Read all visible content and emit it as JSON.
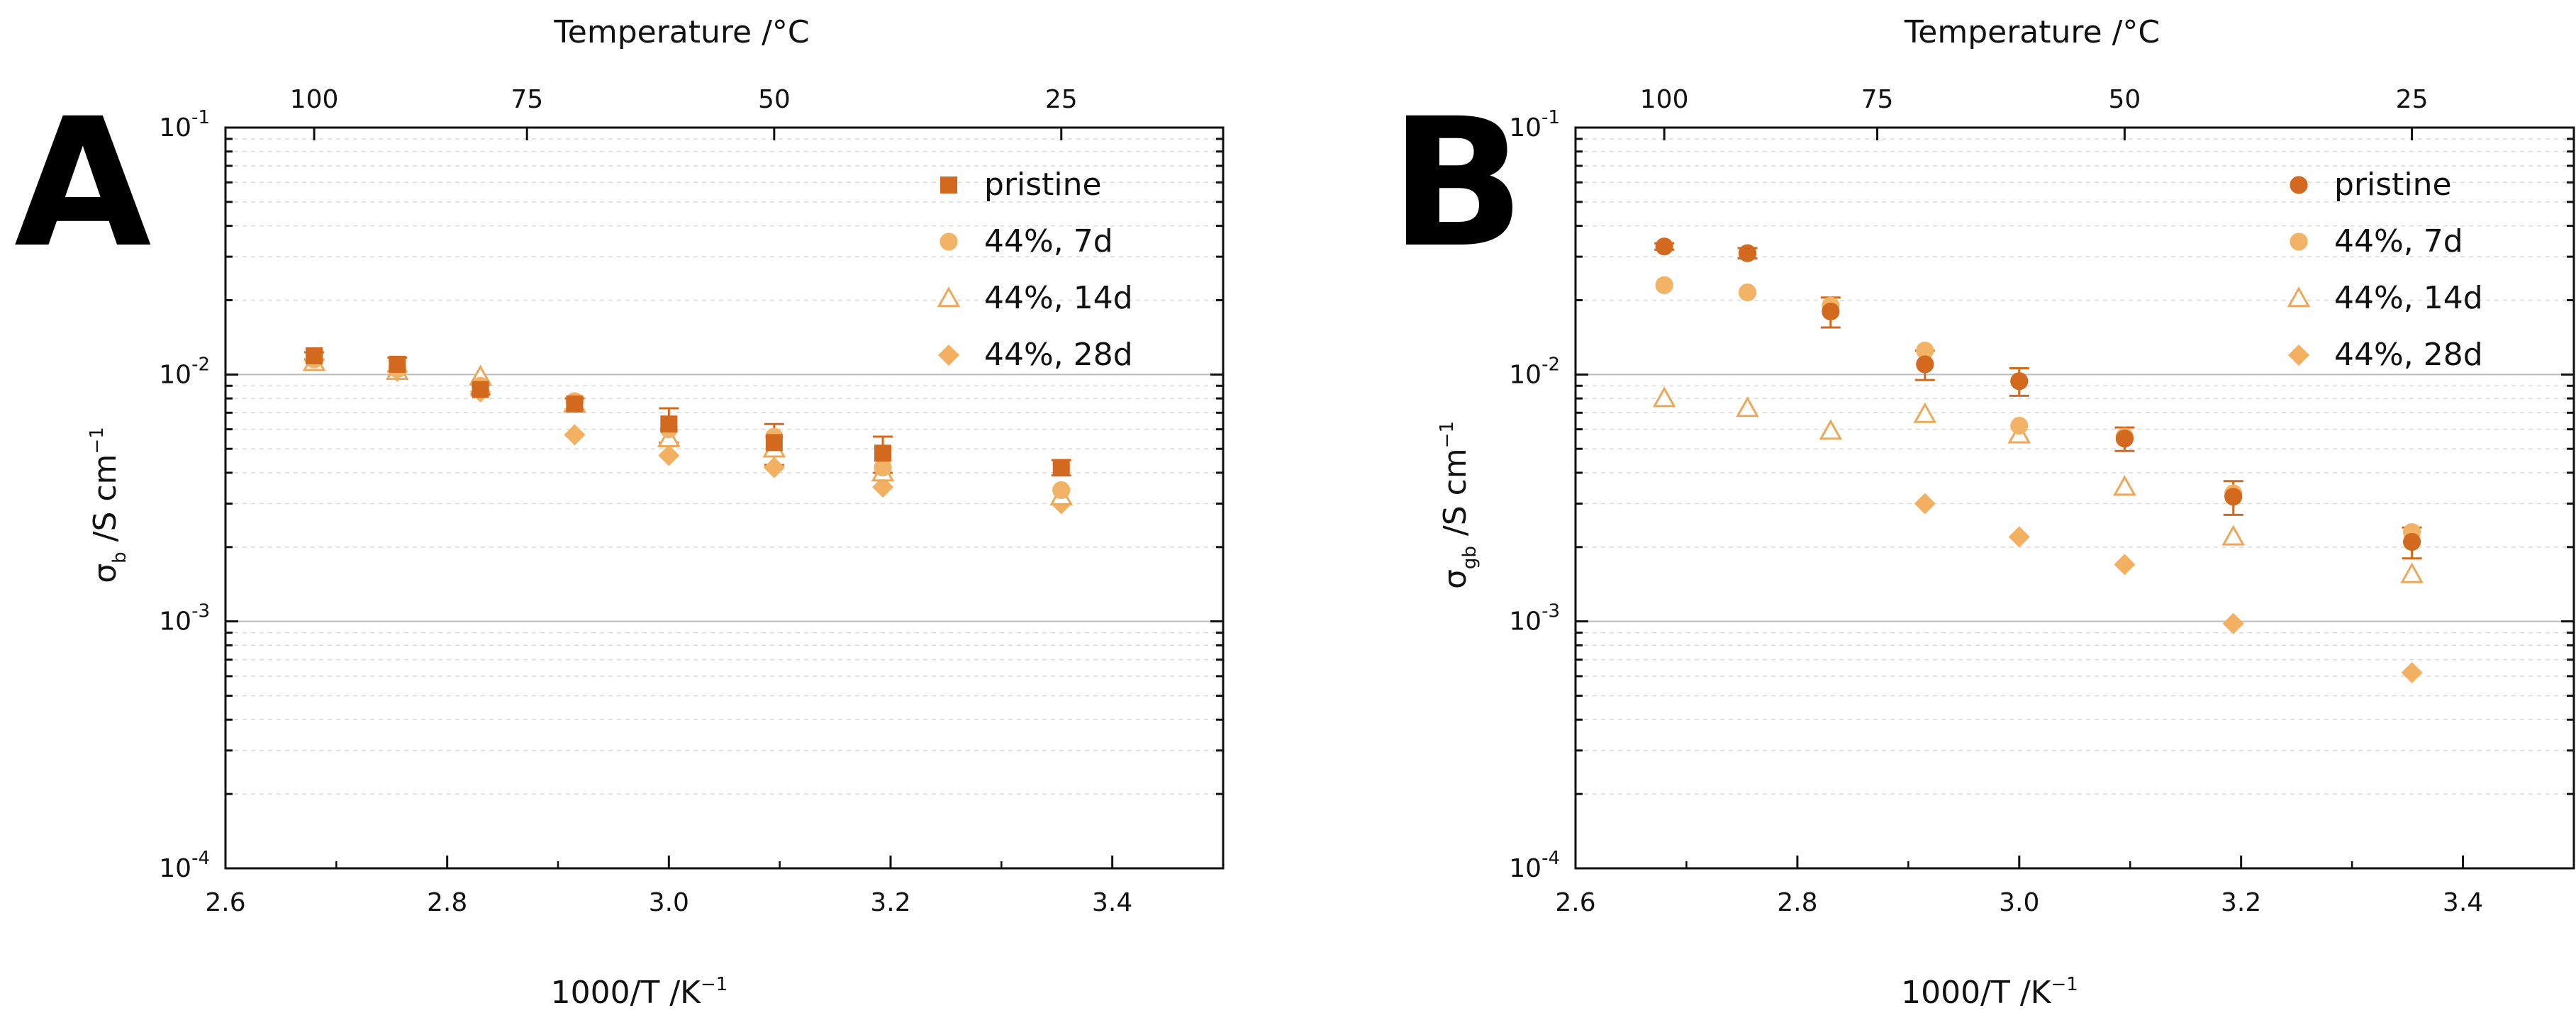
{
  "figure": {
    "panels": [
      "A",
      "B"
    ]
  },
  "colors": {
    "pristine": "#D2691E",
    "d7": "#F2B366",
    "d14": "#EBA85A",
    "d28": "#F2B060",
    "grid_major": "#BBBBBB",
    "grid_minor": "#D9D9D9"
  },
  "chart_data": [
    {
      "type": "scatter",
      "panel": "A",
      "top_axis_title": "Temperature /°C",
      "top_ticks": [
        {
          "label": "100",
          "x": 2.68
        },
        {
          "label": "75",
          "x": 2.872
        },
        {
          "label": "50",
          "x": 3.095
        },
        {
          "label": "25",
          "x": 3.354
        }
      ],
      "xlabel_text": "1000/T /K",
      "xlabel_sup": "−1",
      "ylabel_sym": "σ",
      "ylabel_sub": "b",
      "ylabel_rest": " /S cm",
      "ylabel_sup": "−1",
      "xlim": [
        2.6,
        3.5
      ],
      "xticks": [
        "2.6",
        "2.8",
        "3.0",
        "3.2",
        "3.4"
      ],
      "yscale": "log",
      "ylim": [
        0.0001,
        0.1
      ],
      "ytick_base": "10",
      "ytick_exps": [
        "-4",
        "-3",
        "-2",
        "-1"
      ],
      "legend": {
        "position": "top-right",
        "entries": [
          "pristine",
          "44%, 7d",
          "44%, 14d",
          "44%, 28d"
        ]
      },
      "series": [
        {
          "name": "pristine",
          "marker": "square",
          "x": [
            2.68,
            2.755,
            2.83,
            2.915,
            3.0,
            3.095,
            3.193,
            3.354
          ],
          "y": [
            0.0119,
            0.011,
            0.0087,
            0.0076,
            0.0063,
            0.0053,
            0.0048,
            0.0042
          ],
          "err": [
            0.0004,
            0.0007,
            0.0004,
            0.0004,
            0.001,
            0.001,
            0.0008,
            0.0003
          ]
        },
        {
          "name": "44%, 7d",
          "marker": "circle",
          "x": [
            2.68,
            2.755,
            2.83,
            2.915,
            3.0,
            3.095,
            3.193,
            3.354
          ],
          "y": [
            0.0115,
            0.0105,
            0.009,
            0.0078,
            0.006,
            0.0056,
            0.0042,
            0.0034
          ]
        },
        {
          "name": "44%, 14d",
          "marker": "triangle-open",
          "x": [
            2.68,
            2.755,
            2.83,
            2.915,
            3.0,
            3.095,
            3.193,
            3.354
          ],
          "y": [
            0.0112,
            0.0103,
            0.0098,
            0.0076,
            0.0055,
            0.005,
            0.004,
            0.0032
          ]
        },
        {
          "name": "44%, 28d",
          "marker": "diamond",
          "x": [
            2.68,
            2.755,
            2.83,
            2.915,
            3.0,
            3.095,
            3.193,
            3.354
          ],
          "y": [
            0.0114,
            0.0103,
            0.0085,
            0.0057,
            0.0047,
            0.0042,
            0.0035,
            0.003
          ]
        }
      ]
    },
    {
      "type": "scatter",
      "panel": "B",
      "top_axis_title": "Temperature /°C",
      "top_ticks": [
        {
          "label": "100",
          "x": 2.68
        },
        {
          "label": "75",
          "x": 2.872
        },
        {
          "label": "50",
          "x": 3.095
        },
        {
          "label": "25",
          "x": 3.354
        }
      ],
      "xlabel_text": "1000/T /K",
      "xlabel_sup": "−1",
      "ylabel_sym": "σ",
      "ylabel_sub": "gb",
      "ylabel_rest": " /S cm",
      "ylabel_sup": "−1",
      "xlim": [
        2.6,
        3.5
      ],
      "xticks": [
        "2.6",
        "2.8",
        "3.0",
        "3.2",
        "3.4"
      ],
      "yscale": "log",
      "ylim": [
        0.0001,
        0.1
      ],
      "ytick_base": "10",
      "ytick_exps": [
        "-4",
        "-3",
        "-2",
        "-1"
      ],
      "legend": {
        "position": "top-right",
        "entries": [
          "pristine",
          "44%, 7d",
          "44%, 14d",
          "44%, 28d"
        ]
      },
      "series": [
        {
          "name": "pristine",
          "marker": "circle",
          "x": [
            2.68,
            2.755,
            2.83,
            2.915,
            3.0,
            3.095,
            3.193,
            3.354
          ],
          "y": [
            0.033,
            0.031,
            0.018,
            0.011,
            0.0094,
            0.0055,
            0.0032,
            0.0021
          ],
          "err": [
            0.001,
            0.0015,
            0.0025,
            0.0015,
            0.0012,
            0.0006,
            0.0005,
            0.0003
          ]
        },
        {
          "name": "44%, 7d",
          "marker": "circle",
          "x": [
            2.68,
            2.755,
            2.83,
            2.915,
            3.0,
            3.095,
            3.193,
            3.354
          ],
          "y": [
            0.023,
            0.0215,
            0.019,
            0.0125,
            0.0062,
            0.0056,
            0.0033,
            0.0023
          ]
        },
        {
          "name": "44%, 14d",
          "marker": "triangle-open",
          "x": [
            2.68,
            2.755,
            2.83,
            2.915,
            3.0,
            3.095,
            3.193,
            3.354
          ],
          "y": [
            0.008,
            0.0073,
            0.0059,
            0.0069,
            0.0057,
            0.0035,
            0.0022,
            0.00155
          ]
        },
        {
          "name": "44%, 28d",
          "marker": "diamond",
          "x": [
            2.915,
            3.0,
            3.095,
            3.193,
            3.354
          ],
          "y": [
            0.003,
            0.0022,
            0.0017,
            0.00098,
            0.00062
          ]
        }
      ]
    }
  ]
}
